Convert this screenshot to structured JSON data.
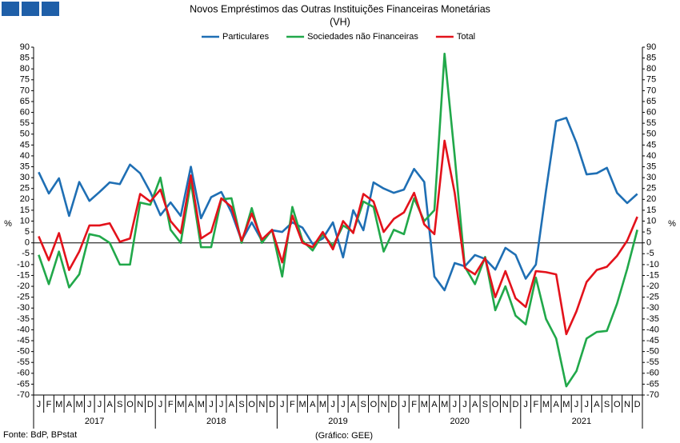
{
  "chart_data": {
    "type": "line",
    "title": "Novos Empréstimos das Outras Instituições Financeiras Monetárias",
    "subtitle": "(VH)",
    "y_label": "%",
    "y2_label": "%",
    "source": "Fonte: BdP, BPstat",
    "credit": "(Gráfico: GEE)",
    "categories": [
      "J",
      "F",
      "M",
      "A",
      "M",
      "J",
      "J",
      "A",
      "S",
      "O",
      "N",
      "D",
      "J",
      "F",
      "M",
      "A",
      "M",
      "J",
      "J",
      "A",
      "S",
      "O",
      "N",
      "D",
      "J",
      "F",
      "M",
      "A",
      "M",
      "J",
      "J",
      "A",
      "S",
      "O",
      "N",
      "D",
      "J",
      "F",
      "M",
      "A",
      "M",
      "J",
      "J",
      "A",
      "S",
      "O",
      "N",
      "D",
      "J",
      "F",
      "M",
      "A",
      "M",
      "J",
      "J",
      "A",
      "S",
      "O",
      "N",
      "D"
    ],
    "years": [
      "2017",
      "2018",
      "2019",
      "2020",
      "2021"
    ],
    "ylim": [
      -70,
      90
    ],
    "yticks": [
      -70,
      -65,
      -60,
      -55,
      -50,
      -45,
      -40,
      -35,
      -30,
      -25,
      -20,
      -15,
      -10,
      -5,
      0,
      5,
      10,
      15,
      20,
      25,
      30,
      35,
      40,
      45,
      50,
      55,
      60,
      65,
      70,
      75,
      80,
      85,
      90
    ],
    "y2lim": [
      -70,
      90
    ],
    "y2ticks": [
      -70,
      -65,
      -60,
      -55,
      -50,
      -45,
      -40,
      -35,
      -30,
      -25,
      -20,
      -15,
      -10,
      -5,
      0,
      5,
      10,
      15,
      20,
      25,
      30,
      35,
      40,
      45,
      50,
      55,
      60,
      65,
      70,
      75,
      80,
      85,
      90
    ],
    "legend": "top",
    "series": [
      {
        "name": "Particulares",
        "color": "#1f6fb4",
        "values": [
          32.5,
          22.7,
          29.7,
          12.4,
          28,
          19.3,
          23.4,
          27.8,
          27,
          36,
          32,
          23.4,
          12.7,
          18.6,
          12.4,
          35,
          11.3,
          21,
          23.4,
          14,
          1,
          9.4,
          1,
          5.8,
          5,
          9.4,
          7,
          -0.5,
          2,
          9.4,
          -6.7,
          15,
          5.8,
          27.8,
          25,
          23,
          24.5,
          34,
          28,
          -15.5,
          -21.8,
          -9.3,
          -10.8,
          -5.6,
          -7.4,
          -12.3,
          -2.3,
          -5.5,
          -16.5,
          -10,
          24,
          56,
          57.5,
          46,
          31.5,
          32,
          34.5,
          23,
          18.3,
          22.5
        ]
      },
      {
        "name": "Sociedades não Financeiras",
        "color": "#21a84a",
        "values": [
          -5.5,
          -19,
          -4,
          -20.5,
          -14.5,
          4,
          3,
          0,
          -10,
          -10,
          18.5,
          17.5,
          30,
          6,
          0,
          28,
          -2,
          -2,
          20,
          20.5,
          0,
          16,
          0,
          6,
          -15.5,
          16.5,
          1,
          -3.5,
          4,
          -1.5,
          8,
          5,
          19,
          16.5,
          -4,
          6,
          4,
          20.5,
          10,
          15,
          87,
          40,
          -11,
          -19,
          -6.5,
          -31,
          -20,
          -33.5,
          -37.5,
          -16,
          -35,
          -44,
          -66,
          -59,
          -44,
          -41,
          -40.5,
          -28,
          -12,
          6
        ]
      },
      {
        "name": "Total",
        "color": "#e3121b",
        "values": [
          3,
          -8,
          4.5,
          -12.5,
          -4,
          8,
          8,
          9,
          0.5,
          2,
          22.5,
          19,
          24.5,
          10,
          4.5,
          31,
          2,
          5,
          20.5,
          16.5,
          1,
          13.5,
          1.5,
          6,
          -9,
          12.5,
          0,
          -2,
          5,
          -3,
          10,
          4.5,
          22.5,
          19,
          5,
          11,
          14,
          23,
          8.5,
          4,
          47,
          23,
          -11.5,
          -14.5,
          -7,
          -25,
          -13,
          -25.5,
          -29.5,
          -13,
          -13.5,
          -14.5,
          -42,
          -31.5,
          -18,
          -12.5,
          -11,
          -6,
          1,
          12
        ]
      }
    ]
  }
}
